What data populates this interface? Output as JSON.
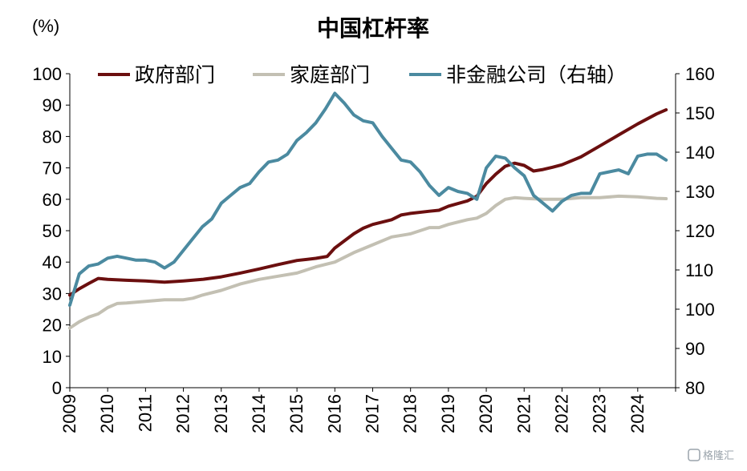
{
  "chart_data": {
    "type": "line",
    "title": "中国杠杆率",
    "unit_label": "(%)",
    "y_left": {
      "min": 0,
      "max": 100,
      "ticks": [
        "0",
        "10",
        "20",
        "30",
        "40",
        "50",
        "60",
        "70",
        "80",
        "90",
        "100"
      ]
    },
    "y_right": {
      "min": 80,
      "max": 160,
      "ticks": [
        "80",
        "90",
        "100",
        "110",
        "120",
        "130",
        "140",
        "150",
        "160"
      ]
    },
    "x": {
      "min": 2009,
      "max": 2025,
      "ticks": [
        "2009",
        "2010",
        "2011",
        "2012",
        "2013",
        "2014",
        "2015",
        "2016",
        "2017",
        "2018",
        "2019",
        "2020",
        "2021",
        "2022",
        "2023",
        "2024"
      ]
    },
    "legend": {
      "position": "top",
      "items": [
        "政府部门",
        "家庭部门",
        "非金融公司（右轴）"
      ]
    },
    "grid": false,
    "series": [
      {
        "name": "政府部门",
        "axis": "left",
        "color": "#6b0f0f",
        "points": [
          [
            2009.0,
            29.5
          ],
          [
            2009.25,
            31.5
          ],
          [
            2009.5,
            33.2
          ],
          [
            2009.75,
            34.8
          ],
          [
            2010.0,
            34.5
          ],
          [
            2010.5,
            34.2
          ],
          [
            2011.0,
            34.0
          ],
          [
            2011.5,
            33.6
          ],
          [
            2012.0,
            34.0
          ],
          [
            2012.5,
            34.5
          ],
          [
            2013.0,
            35.3
          ],
          [
            2013.5,
            36.5
          ],
          [
            2014.0,
            37.8
          ],
          [
            2014.5,
            39.2
          ],
          [
            2015.0,
            40.5
          ],
          [
            2015.5,
            41.2
          ],
          [
            2015.8,
            41.8
          ],
          [
            2016.0,
            44.5
          ],
          [
            2016.5,
            49.0
          ],
          [
            2016.75,
            50.8
          ],
          [
            2017.0,
            52.0
          ],
          [
            2017.5,
            53.5
          ],
          [
            2017.75,
            55.0
          ],
          [
            2018.0,
            55.5
          ],
          [
            2018.5,
            56.2
          ],
          [
            2018.75,
            56.5
          ],
          [
            2019.0,
            57.8
          ],
          [
            2019.5,
            59.5
          ],
          [
            2019.75,
            61.0
          ],
          [
            2020.0,
            65.0
          ],
          [
            2020.25,
            68.0
          ],
          [
            2020.5,
            70.5
          ],
          [
            2020.75,
            71.5
          ],
          [
            2021.0,
            70.8
          ],
          [
            2021.25,
            69.0
          ],
          [
            2021.5,
            69.5
          ],
          [
            2021.75,
            70.2
          ],
          [
            2022.0,
            71.0
          ],
          [
            2022.5,
            73.5
          ],
          [
            2023.0,
            77.0
          ],
          [
            2023.5,
            80.5
          ],
          [
            2024.0,
            84.0
          ],
          [
            2024.5,
            87.2
          ],
          [
            2024.75,
            88.5
          ]
        ]
      },
      {
        "name": "家庭部门",
        "axis": "left",
        "color": "#c3c0b3",
        "points": [
          [
            2009.0,
            19.0
          ],
          [
            2009.25,
            21.0
          ],
          [
            2009.5,
            22.5
          ],
          [
            2009.75,
            23.5
          ],
          [
            2010.0,
            25.5
          ],
          [
            2010.25,
            26.8
          ],
          [
            2010.5,
            27.0
          ],
          [
            2011.0,
            27.5
          ],
          [
            2011.5,
            28.0
          ],
          [
            2012.0,
            28.0
          ],
          [
            2012.25,
            28.5
          ],
          [
            2012.5,
            29.5
          ],
          [
            2013.0,
            31.0
          ],
          [
            2013.5,
            33.0
          ],
          [
            2014.0,
            34.5
          ],
          [
            2014.5,
            35.5
          ],
          [
            2015.0,
            36.5
          ],
          [
            2015.5,
            38.5
          ],
          [
            2016.0,
            40.0
          ],
          [
            2016.5,
            43.0
          ],
          [
            2017.0,
            45.5
          ],
          [
            2017.5,
            48.0
          ],
          [
            2018.0,
            49.0
          ],
          [
            2018.5,
            51.0
          ],
          [
            2018.75,
            51.0
          ],
          [
            2019.0,
            52.0
          ],
          [
            2019.5,
            53.5
          ],
          [
            2019.75,
            54.0
          ],
          [
            2020.0,
            55.5
          ],
          [
            2020.25,
            58.0
          ],
          [
            2020.5,
            60.0
          ],
          [
            2020.75,
            60.5
          ],
          [
            2021.0,
            60.3
          ],
          [
            2021.5,
            60.0
          ],
          [
            2022.0,
            60.0
          ],
          [
            2022.5,
            60.5
          ],
          [
            2023.0,
            60.5
          ],
          [
            2023.5,
            61.0
          ],
          [
            2024.0,
            60.8
          ],
          [
            2024.5,
            60.3
          ],
          [
            2024.75,
            60.2
          ]
        ]
      },
      {
        "name": "非金融公司（右轴）",
        "axis": "right",
        "color": "#4b8aa0",
        "points": [
          [
            2009.0,
            101
          ],
          [
            2009.25,
            109
          ],
          [
            2009.5,
            111
          ],
          [
            2009.75,
            111.5
          ],
          [
            2010.0,
            113
          ],
          [
            2010.25,
            113.5
          ],
          [
            2010.5,
            113
          ],
          [
            2010.75,
            112.5
          ],
          [
            2011.0,
            112.5
          ],
          [
            2011.25,
            112
          ],
          [
            2011.5,
            110.5
          ],
          [
            2011.75,
            112
          ],
          [
            2012.0,
            115
          ],
          [
            2012.25,
            118
          ],
          [
            2012.5,
            121
          ],
          [
            2012.75,
            123
          ],
          [
            2013.0,
            127
          ],
          [
            2013.25,
            129
          ],
          [
            2013.5,
            131
          ],
          [
            2013.75,
            132
          ],
          [
            2014.0,
            135
          ],
          [
            2014.25,
            137.5
          ],
          [
            2014.5,
            138
          ],
          [
            2014.75,
            139.5
          ],
          [
            2015.0,
            143
          ],
          [
            2015.25,
            145
          ],
          [
            2015.5,
            147.5
          ],
          [
            2015.75,
            151
          ],
          [
            2016.0,
            155
          ],
          [
            2016.25,
            152.5
          ],
          [
            2016.5,
            149.5
          ],
          [
            2016.75,
            148
          ],
          [
            2017.0,
            147.5
          ],
          [
            2017.25,
            144
          ],
          [
            2017.5,
            141
          ],
          [
            2017.75,
            138
          ],
          [
            2018.0,
            137.5
          ],
          [
            2018.25,
            135
          ],
          [
            2018.5,
            131.5
          ],
          [
            2018.75,
            129
          ],
          [
            2019.0,
            131
          ],
          [
            2019.25,
            130
          ],
          [
            2019.5,
            129.5
          ],
          [
            2019.75,
            128
          ],
          [
            2020.0,
            136
          ],
          [
            2020.25,
            139
          ],
          [
            2020.5,
            138.5
          ],
          [
            2020.75,
            136
          ],
          [
            2021.0,
            134
          ],
          [
            2021.25,
            129
          ],
          [
            2021.5,
            127
          ],
          [
            2021.75,
            125
          ],
          [
            2022.0,
            127.5
          ],
          [
            2022.25,
            129
          ],
          [
            2022.5,
            129.5
          ],
          [
            2022.75,
            129.5
          ],
          [
            2023.0,
            134.5
          ],
          [
            2023.25,
            135
          ],
          [
            2023.5,
            135.5
          ],
          [
            2023.75,
            134.5
          ],
          [
            2024.0,
            139
          ],
          [
            2024.25,
            139.5
          ],
          [
            2024.5,
            139.5
          ],
          [
            2024.75,
            138
          ]
        ]
      }
    ]
  },
  "watermark": "格隆汇"
}
